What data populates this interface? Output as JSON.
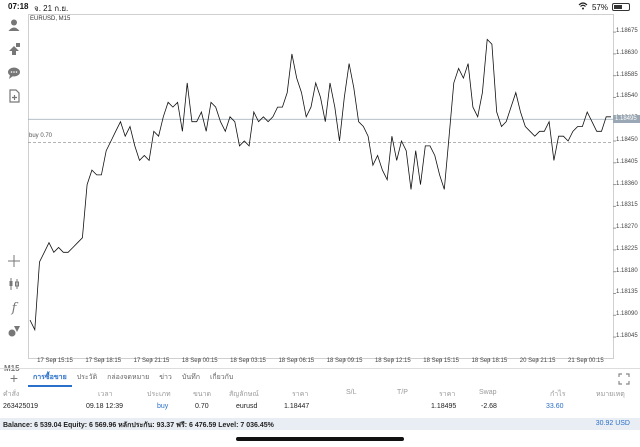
{
  "status_bar": {
    "time": "07:18",
    "date": "จ. 21 ก.ย.",
    "battery_text": "57%",
    "battery_level": 0.57
  },
  "chart": {
    "symbol": "EURUSD, M15",
    "buy_line_label": "buy 0.70",
    "price_axis_labels": [
      "1.18675",
      "1.18630",
      "1.18585",
      "1.18540",
      "1.18495",
      "1.18450",
      "1.18405",
      "1.18360",
      "1.18315",
      "1.18270",
      "1.18225",
      "1.18180",
      "1.18135",
      "1.18090",
      "1.18045"
    ],
    "time_axis_labels": [
      "17 Sep 15:15",
      "17 Sep 18:15",
      "17 Sep 21:15",
      "18 Sep 00:15",
      "18 Sep 03:15",
      "18 Sep 06:15",
      "18 Sep 09:15",
      "18 Sep 12:15",
      "18 Sep 15:15",
      "18 Sep 18:15",
      "20 Sep 21:15",
      "21 Sep 00:15"
    ],
    "current_price": "1.18495"
  },
  "chart_data": {
    "type": "line",
    "title": "EURUSD, M15",
    "ylim": [
      1.1801,
      1.187
    ],
    "y": [
      1.1808,
      1.1806,
      1.182,
      1.1822,
      1.1824,
      1.1822,
      1.1823,
      1.1822,
      1.1822,
      1.1823,
      1.1824,
      1.1825,
      1.1836,
      1.1839,
      1.1838,
      1.1838,
      1.1843,
      1.1845,
      1.1847,
      1.1849,
      1.1846,
      1.1848,
      1.1844,
      1.1841,
      1.1842,
      1.1841,
      1.1847,
      1.1846,
      1.185,
      1.1853,
      1.1852,
      1.1853,
      1.1847,
      1.1857,
      1.1849,
      1.1849,
      1.1851,
      1.1847,
      1.1853,
      1.1852,
      1.1849,
      1.1847,
      1.185,
      1.1849,
      1.1844,
      1.1845,
      1.1844,
      1.1851,
      1.1849,
      1.185,
      1.1849,
      1.185,
      1.1852,
      1.1852,
      1.1855,
      1.1863,
      1.1858,
      1.1855,
      1.185,
      1.1852,
      1.1857,
      1.1854,
      1.1849,
      1.1857,
      1.1852,
      1.1845,
      1.1854,
      1.1861,
      1.1856,
      1.1849,
      1.1848,
      1.1846,
      1.184,
      1.1842,
      1.1839,
      1.1837,
      1.1846,
      1.1841,
      1.1845,
      1.1843,
      1.1835,
      1.1843,
      1.1836,
      1.1844,
      1.1844,
      1.1842,
      1.1838,
      1.1835,
      1.1846,
      1.1857,
      1.186,
      1.1858,
      1.1861,
      1.1852,
      1.185,
      1.1855,
      1.1866,
      1.1865,
      1.1851,
      1.1848,
      1.1849,
      1.1852,
      1.1855,
      1.1851,
      1.1848,
      1.1847,
      1.1846,
      1.1847,
      1.1847,
      1.1849,
      1.1841,
      1.1846,
      1.1846,
      1.1845,
      1.1847,
      1.1848,
      1.1848,
      1.1851,
      1.1849,
      1.1847,
      1.1847,
      1.185,
      1.185
    ],
    "buy_level": 1.18447,
    "current_level": 1.18495,
    "grid": true
  },
  "tabs": [
    "การซื้อขาย",
    "ประวัติ",
    "กล่องจดหมาย",
    "ข่าว",
    "บันทึก",
    "เกี่ยวกับ"
  ],
  "table": {
    "headers": [
      "คำสั่ง",
      "เวลา",
      "ประเภท",
      "ขนาด",
      "สัญลักษณ์",
      "ราคา",
      "S/L",
      "T/P",
      "ราคา",
      "Swap",
      "กำไร",
      "หมายเหตุ"
    ],
    "row": {
      "order": "263425019",
      "time": "09.18 12:39",
      "type": "buy",
      "size": "0.70",
      "symbol": "eurusd",
      "open_price": "1.18447",
      "price": "1.18495",
      "swap": "-2.68",
      "profit": "33.60"
    }
  },
  "balance": {
    "text": "Balance: 6 539.04 Equity: 6 569.96 หลักประกัน: 93.37 ฟรี: 6 476.59 Level: 7 036.45%",
    "profit": "30.92  USD"
  },
  "left_tools": {
    "timeframe": "M15"
  },
  "colors": {
    "accent": "#2a6fc9",
    "line": "#111111",
    "grid": "#e6e6e6",
    "buy_line": "#9a9a9a",
    "price_badge": "#9aa7b4"
  }
}
